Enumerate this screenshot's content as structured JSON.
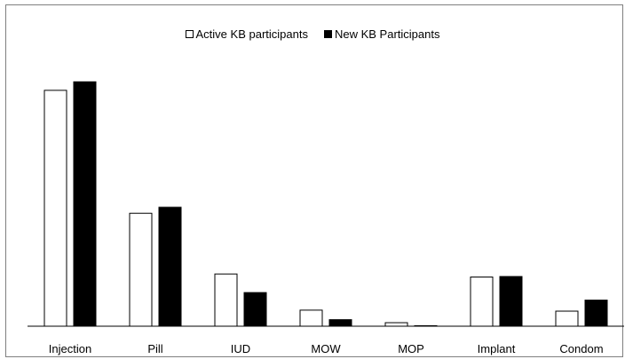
{
  "chart_data": {
    "type": "bar",
    "categories": [
      "Injection",
      "Pill",
      "IUD",
      "MOW",
      "MOP",
      "Implant",
      "Condom"
    ],
    "series": [
      {
        "name": "Active KB participants",
        "values": [
          47.0,
          22.5,
          10.4,
          3.2,
          0.7,
          9.8,
          3.0
        ],
        "color": "#ffffff"
      },
      {
        "name": "New KB Participants",
        "values": [
          48.7,
          23.7,
          6.7,
          1.3,
          0.1,
          9.9,
          5.2
        ],
        "color": "#000000"
      }
    ],
    "ylim": [
      0,
      65
    ],
    "grid": false,
    "legend": "top-center",
    "title": "",
    "xlabel": "",
    "ylabel": ""
  }
}
